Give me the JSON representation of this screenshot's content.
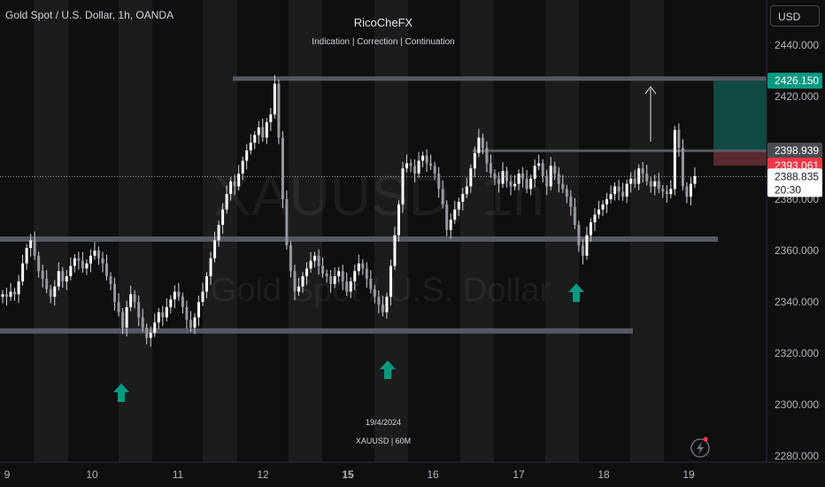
{
  "header": {
    "symbol_title": "Gold Spot / U.S. Dollar, 1h, OANDA",
    "author": "RicoCheFX",
    "subtitle": "Indication | Correction | Continuation",
    "currency": "USD"
  },
  "watermark": {
    "symbol": "XAUUSD, 1h",
    "name": "Gold Spot / U.S. Dollar"
  },
  "notes": {
    "date": "19/4/2024",
    "symbol": "XAUUSD | 60M"
  },
  "colors": {
    "background": "#0f0f0f",
    "up_candle": "#ffffff",
    "down_candle": "#ffffff",
    "arrow": "#089981",
    "level_line": "#5d606b",
    "session_band": "#1c1c1c",
    "target_zone": "#0f4a43",
    "stop_zone": "#5a2a30",
    "target_label": "#089981",
    "stop_label": "#f23645"
  },
  "chart_data": {
    "type": "candlestick",
    "symbol": "XAUUSD",
    "timeframe": "1h",
    "ylim": [
      2280,
      2440
    ],
    "x_ticks": [
      "9",
      "10",
      "11",
      "12",
      "15",
      "16",
      "17",
      "18",
      "19"
    ],
    "y_ticks": [
      "2440.000",
      "2420.000",
      "2400.000",
      "2380.000",
      "2360.000",
      "2340.000",
      "2320.000",
      "2300.000",
      "2280.000"
    ],
    "price_labels": [
      {
        "role": "target",
        "text": "2426.150",
        "value": 2426.15
      },
      {
        "role": "entry",
        "text": "2398.939",
        "value": 2398.939
      },
      {
        "role": "stop",
        "text": "2393.061",
        "value": 2393.061
      },
      {
        "role": "last",
        "text": "2388.835",
        "value": 2388.835
      },
      {
        "role": "countdown",
        "text": "20:30"
      }
    ],
    "levels": [
      {
        "name": "upper-resistance",
        "price": 2427
      },
      {
        "name": "mid-resistance",
        "price": 2398.9
      },
      {
        "name": "support",
        "price": 2364.5
      },
      {
        "name": "lower-support",
        "price": 2328.7
      }
    ],
    "candle_closes": [
      2343,
      2342,
      2344,
      2343,
      2348,
      2355,
      2361,
      2364,
      2358,
      2352,
      2349,
      2345,
      2342,
      2346,
      2352,
      2348,
      2350,
      2354,
      2357,
      2356,
      2353,
      2355,
      2358,
      2360,
      2357,
      2355,
      2350,
      2347,
      2340,
      2336,
      2330,
      2338,
      2343,
      2340,
      2334,
      2330,
      2326,
      2328,
      2332,
      2336,
      2334,
      2338,
      2341,
      2344,
      2342,
      2338,
      2333,
      2330,
      2334,
      2340,
      2344,
      2350,
      2357,
      2364,
      2370,
      2376,
      2382,
      2387,
      2385,
      2390,
      2395,
      2399,
      2402,
      2405,
      2408,
      2404,
      2410,
      2413,
      2425,
      2404,
      2380,
      2362,
      2352,
      2344,
      2346,
      2350,
      2353,
      2356,
      2358,
      2354,
      2351,
      2350,
      2347,
      2350,
      2352,
      2348,
      2344,
      2348,
      2352,
      2355,
      2353,
      2349,
      2345,
      2342,
      2339,
      2336,
      2342,
      2354,
      2366,
      2378,
      2392,
      2394,
      2393,
      2390,
      2395,
      2397,
      2394,
      2393,
      2390,
      2384,
      2378,
      2368,
      2372,
      2376,
      2379,
      2382,
      2385,
      2392,
      2398,
      2404,
      2400,
      2394,
      2390,
      2388,
      2386,
      2391,
      2387,
      2385,
      2386,
      2390,
      2388,
      2384,
      2388,
      2393,
      2394,
      2389,
      2385,
      2393,
      2390,
      2386,
      2384,
      2381,
      2377,
      2370,
      2362,
      2358,
      2366,
      2371,
      2374,
      2376,
      2378,
      2380,
      2382,
      2385,
      2383,
      2381,
      2386,
      2388,
      2386,
      2392,
      2390,
      2387,
      2385,
      2387,
      2384,
      2383,
      2382,
      2384,
      2407,
      2400,
      2385,
      2381,
      2386,
      2389
    ]
  }
}
